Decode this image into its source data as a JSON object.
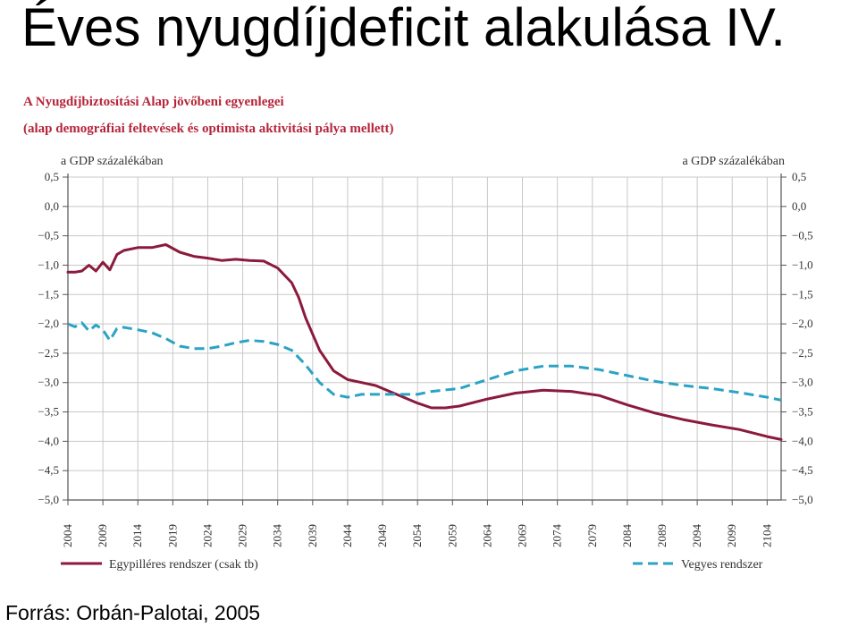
{
  "slide": {
    "title": "Éves nyugdíjdeficit alakulása IV.",
    "source": "Forrás: Orbán-Palotai, 2005"
  },
  "colors": {
    "series1": "#8b1a3c",
    "series2": "#2aa3c4",
    "chart_title": "#b5253a",
    "grid": "#c8c8c8"
  },
  "chart_data": {
    "type": "line",
    "title": "A Nyugdíjbiztosítási Alap jövőbeni egyenlegei",
    "subtitle": "(alap demográfiai feltevések és optimista aktivitási pálya mellett)",
    "y_unit_left": "a GDP százalékában",
    "y_unit_right": "a GDP százalékában",
    "ylim": [
      -5.0,
      0.5
    ],
    "yticks": [
      "0,5",
      "0,0",
      "−0,5",
      "−1,0",
      "−1,5",
      "−2,0",
      "−2,5",
      "−3,0",
      "−3,5",
      "−4,0",
      "−4,5",
      "−5,0"
    ],
    "ytick_values": [
      0.5,
      0.0,
      -0.5,
      -1.0,
      -1.5,
      -2.0,
      -2.5,
      -3.0,
      -3.5,
      -4.0,
      -4.5,
      -5.0
    ],
    "xlim": [
      2004,
      2106
    ],
    "xticks": [
      "2004",
      "2009",
      "2014",
      "2019",
      "2024",
      "2029",
      "2034",
      "2039",
      "2044",
      "2049",
      "2054",
      "2059",
      "2064",
      "2069",
      "2074",
      "2079",
      "2084",
      "2089",
      "2094",
      "2099",
      "2104"
    ],
    "grid": true,
    "legend_position": "bottom",
    "series": [
      {
        "name": "Egypilléres rendszer (csak tb)",
        "style": "solid",
        "color": "#8b1a3c",
        "points": [
          [
            2004,
            -1.12
          ],
          [
            2005,
            -1.12
          ],
          [
            2006,
            -1.1
          ],
          [
            2007,
            -1.0
          ],
          [
            2008,
            -1.1
          ],
          [
            2009,
            -0.95
          ],
          [
            2010,
            -1.08
          ],
          [
            2011,
            -0.82
          ],
          [
            2012,
            -0.75
          ],
          [
            2014,
            -0.7
          ],
          [
            2016,
            -0.7
          ],
          [
            2018,
            -0.65
          ],
          [
            2020,
            -0.78
          ],
          [
            2022,
            -0.85
          ],
          [
            2024,
            -0.88
          ],
          [
            2026,
            -0.92
          ],
          [
            2028,
            -0.9
          ],
          [
            2030,
            -0.92
          ],
          [
            2032,
            -0.93
          ],
          [
            2034,
            -1.05
          ],
          [
            2036,
            -1.3
          ],
          [
            2037,
            -1.55
          ],
          [
            2038,
            -1.9
          ],
          [
            2040,
            -2.45
          ],
          [
            2042,
            -2.8
          ],
          [
            2044,
            -2.95
          ],
          [
            2046,
            -3.0
          ],
          [
            2048,
            -3.05
          ],
          [
            2050,
            -3.15
          ],
          [
            2052,
            -3.25
          ],
          [
            2054,
            -3.35
          ],
          [
            2056,
            -3.43
          ],
          [
            2058,
            -3.43
          ],
          [
            2060,
            -3.4
          ],
          [
            2064,
            -3.28
          ],
          [
            2068,
            -3.18
          ],
          [
            2072,
            -3.13
          ],
          [
            2076,
            -3.15
          ],
          [
            2080,
            -3.22
          ],
          [
            2084,
            -3.38
          ],
          [
            2088,
            -3.52
          ],
          [
            2092,
            -3.63
          ],
          [
            2096,
            -3.72
          ],
          [
            2100,
            -3.8
          ],
          [
            2104,
            -3.92
          ],
          [
            2106,
            -3.97
          ]
        ]
      },
      {
        "name": "Vegyes rendszer",
        "style": "dashed",
        "color": "#2aa3c4",
        "points": [
          [
            2004,
            -2.0
          ],
          [
            2005,
            -2.05
          ],
          [
            2006,
            -1.98
          ],
          [
            2007,
            -2.12
          ],
          [
            2008,
            -2.02
          ],
          [
            2009,
            -2.1
          ],
          [
            2010,
            -2.28
          ],
          [
            2011,
            -2.08
          ],
          [
            2012,
            -2.06
          ],
          [
            2014,
            -2.1
          ],
          [
            2016,
            -2.15
          ],
          [
            2018,
            -2.25
          ],
          [
            2020,
            -2.38
          ],
          [
            2022,
            -2.42
          ],
          [
            2024,
            -2.42
          ],
          [
            2026,
            -2.38
          ],
          [
            2028,
            -2.32
          ],
          [
            2030,
            -2.28
          ],
          [
            2032,
            -2.3
          ],
          [
            2034,
            -2.35
          ],
          [
            2036,
            -2.45
          ],
          [
            2038,
            -2.7
          ],
          [
            2040,
            -3.0
          ],
          [
            2042,
            -3.2
          ],
          [
            2044,
            -3.25
          ],
          [
            2046,
            -3.2
          ],
          [
            2050,
            -3.2
          ],
          [
            2054,
            -3.2
          ],
          [
            2056,
            -3.15
          ],
          [
            2060,
            -3.1
          ],
          [
            2064,
            -2.95
          ],
          [
            2068,
            -2.8
          ],
          [
            2072,
            -2.72
          ],
          [
            2076,
            -2.72
          ],
          [
            2080,
            -2.78
          ],
          [
            2084,
            -2.88
          ],
          [
            2088,
            -2.98
          ],
          [
            2092,
            -3.05
          ],
          [
            2096,
            -3.1
          ],
          [
            2100,
            -3.17
          ],
          [
            2104,
            -3.25
          ],
          [
            2106,
            -3.3
          ]
        ]
      }
    ]
  }
}
